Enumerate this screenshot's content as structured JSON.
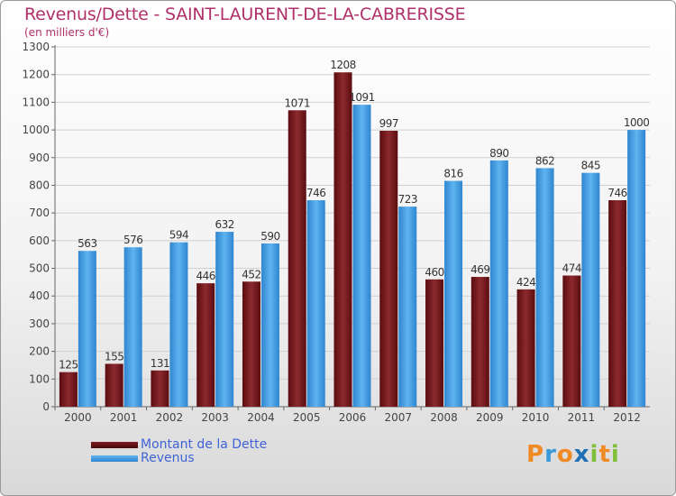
{
  "chart_data": {
    "type": "bar",
    "title": "Revenus/Dette - SAINT-LAURENT-DE-LA-CABRERISSE",
    "subtitle": "(en milliers d'€)",
    "categories": [
      "2000",
      "2001",
      "2002",
      "2003",
      "2004",
      "2005",
      "2006",
      "2007",
      "2008",
      "2009",
      "2010",
      "2011",
      "2012"
    ],
    "series": [
      {
        "name": "Montant de la Dette",
        "color": "#7a1a1e",
        "values": [
          125,
          155,
          131,
          446,
          452,
          1071,
          1208,
          997,
          460,
          469,
          424,
          474,
          746
        ]
      },
      {
        "name": "Revenus",
        "color": "#4aa6ea",
        "values": [
          563,
          576,
          594,
          632,
          590,
          746,
          1091,
          723,
          816,
          890,
          862,
          845,
          1000
        ]
      }
    ],
    "ylim": [
      0,
      1300
    ],
    "yticks": [
      0,
      100,
      200,
      300,
      400,
      500,
      600,
      700,
      800,
      900,
      1000,
      1100,
      1200,
      1300
    ],
    "grid": true,
    "legend_position": "bottom-left"
  },
  "logo": {
    "letters": [
      "P",
      "r",
      "o",
      "x",
      "i",
      "t",
      "i"
    ],
    "colors": [
      "#f08a24",
      "#3a9ad9",
      "#f08a24",
      "#1f6fb5",
      "#7fbf3a",
      "#f08a24",
      "#7fbf3a"
    ]
  }
}
